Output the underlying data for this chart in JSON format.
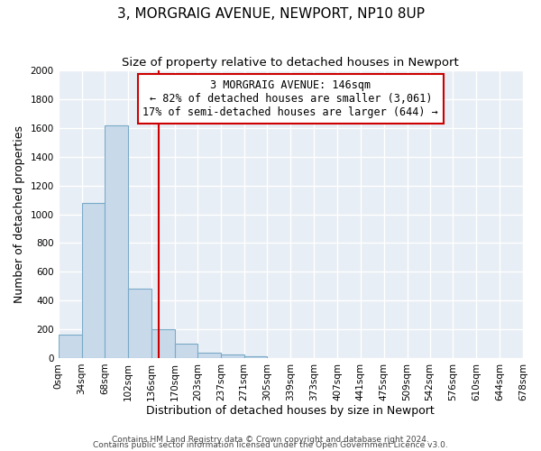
{
  "title": "3, MORGRAIG AVENUE, NEWPORT, NP10 8UP",
  "subtitle": "Size of property relative to detached houses in Newport",
  "xlabel": "Distribution of detached houses by size in Newport",
  "ylabel": "Number of detached properties",
  "bin_edges": [
    0,
    34,
    68,
    102,
    136,
    170,
    203,
    237,
    271,
    305,
    339,
    373,
    407,
    441,
    475,
    509,
    542,
    576,
    610,
    644,
    678
  ],
  "bin_heights": [
    165,
    1080,
    1620,
    480,
    200,
    100,
    40,
    25,
    15,
    0,
    0,
    0,
    0,
    0,
    0,
    0,
    0,
    0,
    0,
    0
  ],
  "bar_face_color": "#c8d9ea",
  "bar_edge_color": "#7aaac8",
  "vline_x": 146,
  "vline_color": "#cc0000",
  "annotation_title": "3 MORGRAIG AVENUE: 146sqm",
  "annotation_line1": "← 82% of detached houses are smaller (3,061)",
  "annotation_line2": "17% of semi-detached houses are larger (644) →",
  "annotation_box_edge_color": "#cc0000",
  "ylim": [
    0,
    2000
  ],
  "yticks": [
    0,
    200,
    400,
    600,
    800,
    1000,
    1200,
    1400,
    1600,
    1800,
    2000
  ],
  "xtick_labels": [
    "0sqm",
    "34sqm",
    "68sqm",
    "102sqm",
    "136sqm",
    "170sqm",
    "203sqm",
    "237sqm",
    "271sqm",
    "305sqm",
    "339sqm",
    "373sqm",
    "407sqm",
    "441sqm",
    "475sqm",
    "509sqm",
    "542sqm",
    "576sqm",
    "610sqm",
    "644sqm",
    "678sqm"
  ],
  "footer1": "Contains HM Land Registry data © Crown copyright and database right 2024.",
  "footer2": "Contains public sector information licensed under the Open Government Licence v3.0.",
  "bg_color": "#ffffff",
  "plot_bg_color": "#e8eef5",
  "grid_color": "#ffffff",
  "title_fontsize": 11,
  "subtitle_fontsize": 9.5,
  "axis_label_fontsize": 9,
  "tick_fontsize": 7.5,
  "footer_fontsize": 6.5,
  "annotation_fontsize": 8.5
}
